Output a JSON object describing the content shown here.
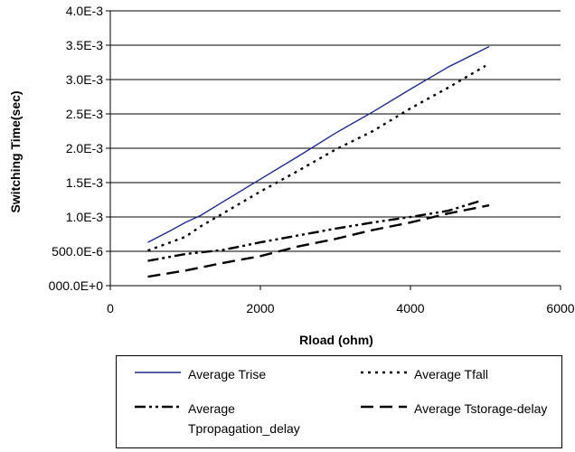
{
  "chart_data": {
    "type": "line",
    "title": "",
    "xlabel": "Rload (ohm)",
    "ylabel": "Switching Time(sec)",
    "xlim": [
      0,
      6000
    ],
    "ylim": [
      0,
      0.004
    ],
    "x_ticks": [
      {
        "value": 0,
        "label": "0"
      },
      {
        "value": 2000,
        "label": "2000"
      },
      {
        "value": 4000,
        "label": "4000"
      },
      {
        "value": 6000,
        "label": "6000"
      }
    ],
    "y_ticks": [
      {
        "value": 0,
        "label": "000.0E+0"
      },
      {
        "value": 0.0005,
        "label": "500.0E-6"
      },
      {
        "value": 0.001,
        "label": "1.0E-3"
      },
      {
        "value": 0.0015,
        "label": "1.5E-3"
      },
      {
        "value": 0.002,
        "label": "2.0E-3"
      },
      {
        "value": 0.0025,
        "label": "2.5E-3"
      },
      {
        "value": 0.003,
        "label": "3.0E-3"
      },
      {
        "value": 0.0035,
        "label": "3.5E-3"
      },
      {
        "value": 0.004,
        "label": "4.0E-3"
      }
    ],
    "grid": "horizontal",
    "legend_position": "bottom",
    "series": [
      {
        "name": "Average Trise",
        "color": "#1f2a8a",
        "dash": "solid",
        "x": [
          500,
          800,
          1000,
          1200,
          1500,
          2000,
          2500,
          3000,
          3500,
          4000,
          4500,
          5050
        ],
        "y": [
          0.00063,
          0.0008,
          0.00092,
          0.00102,
          0.00122,
          0.00155,
          0.00188,
          0.00222,
          0.00253,
          0.00286,
          0.00318,
          0.00348
        ]
      },
      {
        "name": "Average Tfall",
        "color": "#000000",
        "dash": "dot",
        "x": [
          500,
          800,
          1000,
          1200,
          1500,
          2000,
          2500,
          3000,
          3500,
          4000,
          4500,
          5000
        ],
        "y": [
          0.00051,
          0.00063,
          0.00071,
          0.00086,
          0.00105,
          0.00137,
          0.00167,
          0.00198,
          0.00225,
          0.00258,
          0.00288,
          0.0032
        ]
      },
      {
        "name": "Average Tpropagation_delay",
        "color": "#000000",
        "dash": "dashdot",
        "x": [
          500,
          1000,
          1500,
          2000,
          2500,
          3000,
          3500,
          4000,
          4500,
          4950
        ],
        "y": [
          0.00036,
          0.00046,
          0.00052,
          0.00063,
          0.00073,
          0.00083,
          0.00092,
          0.001,
          0.00109,
          0.00124
        ]
      },
      {
        "name": "Average Tstorage-delay",
        "color": "#000000",
        "dash": "dash",
        "x": [
          500,
          1000,
          1500,
          2000,
          2500,
          3000,
          3500,
          4000,
          4500,
          5050
        ],
        "y": [
          0.00013,
          0.00022,
          0.00033,
          0.00043,
          0.00057,
          0.00068,
          0.00081,
          0.00092,
          0.00105,
          0.00117
        ]
      }
    ]
  },
  "legend": {
    "items": [
      {
        "label": "Average Trise"
      },
      {
        "label": "Average Tfall"
      },
      {
        "label": "Average Tpropagation_delay"
      },
      {
        "label": "Average Tstorage-delay"
      }
    ]
  }
}
